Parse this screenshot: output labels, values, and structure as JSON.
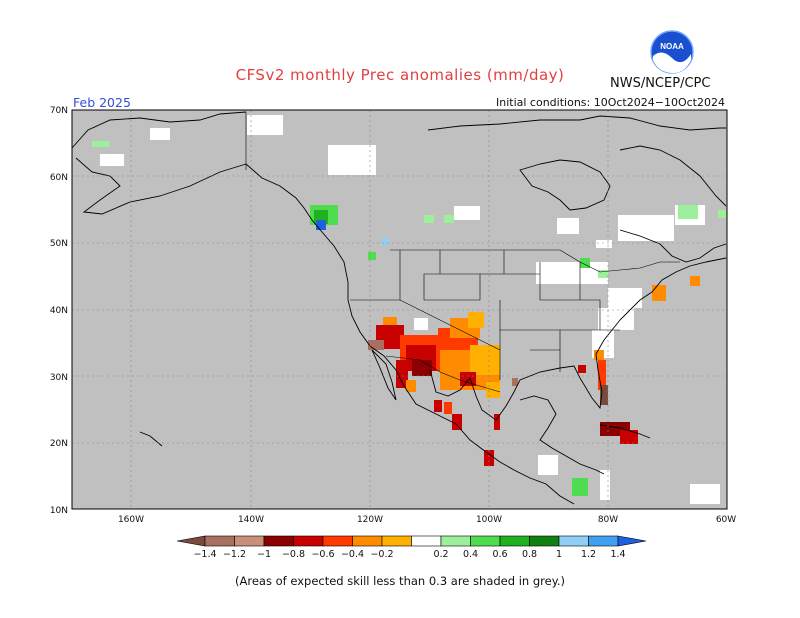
{
  "header": {
    "title": "CFSv2 monthly Prec anomalies (mm/day)",
    "agency": "NWS/NCEP/CPC",
    "valid_month": "Feb 2025",
    "initial_conditions": "Initial conditions: 10Oct2024−10Oct2024"
  },
  "logo": {
    "icon": "noaa-logo",
    "text": "NOAA"
  },
  "map": {
    "lat_labels": [
      "70N",
      "60N",
      "50N",
      "40N",
      "30N",
      "20N",
      "10N"
    ],
    "lon_labels": [
      "160W",
      "140W",
      "120W",
      "100W",
      "80W",
      "60W"
    ],
    "grey_mask_color": "#c0c0c0",
    "land_outline_color": "#000000"
  },
  "colorbar": {
    "levels": [
      "−1.4",
      "−1.2",
      "−1",
      "−0.8",
      "−0.6",
      "−0.4",
      "−0.2",
      "0.2",
      "0.4",
      "0.6",
      "0.8",
      "1",
      "1.2",
      "1.4"
    ],
    "colors": [
      "#7a4a3c",
      "#a87060",
      "#c8907a",
      "#8b0000",
      "#c80000",
      "#ff3a00",
      "#ff8c00",
      "#ffb000",
      "#ffffff",
      "#9cf09c",
      "#50dc50",
      "#20b020",
      "#108010",
      "#8fcff5",
      "#3fa0f0",
      "#1f60e0"
    ]
  },
  "footnote": "(Areas of expected skill less than 0.3 are shaded in grey.)"
}
